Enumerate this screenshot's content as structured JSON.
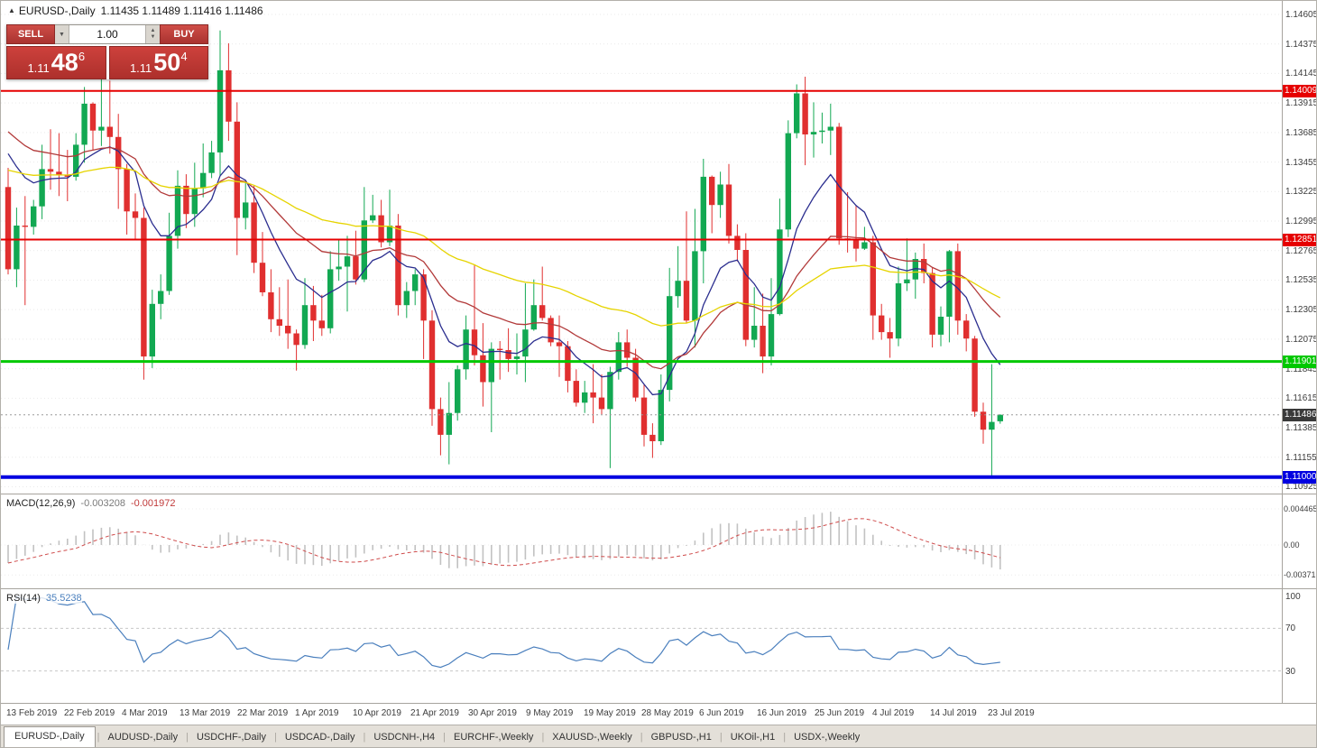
{
  "window": {
    "symbol_header": {
      "marker": "▲",
      "title": "EURUSD-,Daily",
      "ohlc": "1.11435 1.11489 1.11416 1.11486"
    },
    "trade_panel": {
      "sell_label": "SELL",
      "buy_label": "BUY",
      "volume": "1.00",
      "sell_price": {
        "prefix": "1.11",
        "big": "48",
        "sup": "6"
      },
      "buy_price": {
        "prefix": "1.11",
        "big": "50",
        "sup": "4"
      }
    },
    "tabs": [
      "EURUSD-,Daily",
      "AUDUSD-,Daily",
      "USDCHF-,Daily",
      "USDCAD-,Daily",
      "USDCNH-,H4",
      "EURCHF-,Weekly",
      "XAUUSD-,Weekly",
      "GBPUSD-,H1",
      "UKOil-,H1",
      "USDX-,Weekly"
    ],
    "active_tab": 0
  },
  "chart_data": {
    "type": "candlestick",
    "title": "EURUSD-,Daily",
    "price_axis": {
      "top_price": 1.14605,
      "step": 0.0023,
      "ticks": [
        "1.14605",
        "1.14375",
        "1.14145",
        "1.13915",
        "1.13685",
        "1.13455",
        "1.13225",
        "1.12995",
        "1.12765",
        "1.12535",
        "1.12305",
        "1.12075",
        "1.11845",
        "1.11615",
        "1.11385",
        "1.11155",
        "1.10925"
      ]
    },
    "x_axis_labels": [
      "13 Feb 2019",
      "22 Feb 2019",
      "4 Mar 2019",
      "13 Mar 2019",
      "22 Mar 2019",
      "1 Apr 2019",
      "10 Apr 2019",
      "21 Apr 2019",
      "30 Apr 2019",
      "9 May 2019",
      "19 May 2019",
      "28 May 2019",
      "6 Jun 2019",
      "16 Jun 2019",
      "25 Jun 2019",
      "4 Jul 2019",
      "14 Jul 2019",
      "23 Jul 2019"
    ],
    "hlines": [
      {
        "price": 1.14009,
        "label": "1.14009",
        "color": "#e60000",
        "width": 2
      },
      {
        "price": 1.12851,
        "label": "1.12851",
        "color": "#e60000",
        "width": 2
      },
      {
        "price": 1.11901,
        "label": "1.11901",
        "color": "#00c800",
        "width": 3
      },
      {
        "price": 1.11,
        "label": "1.11000",
        "color": "#0000e0",
        "width": 4
      }
    ],
    "current_price": {
      "value": 1.11486,
      "label": "1.11486"
    },
    "moving_averages": [
      {
        "name": "fast",
        "period": 10,
        "seed": 1.1372,
        "color": "#2b2e8f"
      },
      {
        "name": "medium",
        "period": 25,
        "seed": 1.1378,
        "color": "#b23a3a"
      },
      {
        "name": "slow",
        "period": 55,
        "seed": 1.1342,
        "color": "#e6d400"
      }
    ],
    "indicators": {
      "macd": {
        "label": "MACD(12,26,9)",
        "value_main": "-0.003208",
        "value_signal": "-0.001972",
        "fast": 12,
        "slow": 26,
        "signal": 9,
        "axis_ticks": [
          {
            "value": 0.004465,
            "label": "0.004465"
          },
          {
            "value": 0,
            "label": "0.00"
          },
          {
            "value": -0.003715,
            "label": "-0.003715"
          }
        ]
      },
      "rsi": {
        "label": "RSI(14)",
        "value": "35.5238",
        "period": 14,
        "levels": [
          70,
          30
        ],
        "axis_ticks": [
          {
            "value": 100,
            "label": "100"
          },
          {
            "value": 70,
            "label": "70"
          },
          {
            "value": 30,
            "label": "30"
          }
        ]
      }
    },
    "colors": {
      "bull": "#12a852",
      "bear": "#e02f2f",
      "grid": "#e9e9e9",
      "macd_hist": "#c2c2c2",
      "macd_signal": "#cf4b4b",
      "rsi": "#4a7fbd",
      "current_tag": "#3a3a3a"
    },
    "ohlc": [
      [
        1.1326,
        1.1341,
        1.1258,
        1.1262
      ],
      [
        1.1262,
        1.131,
        1.1248,
        1.1296
      ],
      [
        1.1296,
        1.1319,
        1.1234,
        1.1295
      ],
      [
        1.1295,
        1.1316,
        1.1289,
        1.1311
      ],
      [
        1.1311,
        1.1359,
        1.1301,
        1.134
      ],
      [
        1.134,
        1.1371,
        1.1324,
        1.1338
      ],
      [
        1.1338,
        1.1368,
        1.1319,
        1.1335
      ],
      [
        1.1335,
        1.1355,
        1.1315,
        1.1334
      ],
      [
        1.1334,
        1.1368,
        1.1331,
        1.1359
      ],
      [
        1.1359,
        1.1404,
        1.1345,
        1.1391
      ],
      [
        1.1391,
        1.1392,
        1.1355,
        1.137
      ],
      [
        1.137,
        1.142,
        1.1358,
        1.1373
      ],
      [
        1.1373,
        1.1409,
        1.1352,
        1.1365
      ],
      [
        1.1365,
        1.1383,
        1.1309,
        1.134
      ],
      [
        1.134,
        1.1344,
        1.1289,
        1.1307
      ],
      [
        1.1307,
        1.1321,
        1.1285,
        1.1302
      ],
      [
        1.1302,
        1.131,
        1.1176,
        1.1194
      ],
      [
        1.1194,
        1.1246,
        1.1185,
        1.1235
      ],
      [
        1.1235,
        1.1258,
        1.1223,
        1.1245
      ],
      [
        1.1245,
        1.1306,
        1.1242,
        1.1288
      ],
      [
        1.1288,
        1.1339,
        1.1278,
        1.1327
      ],
      [
        1.1327,
        1.1336,
        1.1294,
        1.1305
      ],
      [
        1.1305,
        1.1345,
        1.1295,
        1.1325
      ],
      [
        1.1325,
        1.136,
        1.1318,
        1.1337
      ],
      [
        1.1337,
        1.1362,
        1.1333,
        1.1353
      ],
      [
        1.1353,
        1.1448,
        1.1335,
        1.1417
      ],
      [
        1.1417,
        1.1438,
        1.1362,
        1.1377
      ],
      [
        1.1377,
        1.1392,
        1.1273,
        1.1302
      ],
      [
        1.1302,
        1.133,
        1.1293,
        1.1314
      ],
      [
        1.1314,
        1.1327,
        1.1259,
        1.1267
      ],
      [
        1.1267,
        1.1291,
        1.1241,
        1.1244
      ],
      [
        1.1244,
        1.1262,
        1.1213,
        1.1223
      ],
      [
        1.1223,
        1.1248,
        1.121,
        1.1218
      ],
      [
        1.1218,
        1.1254,
        1.12,
        1.1212
      ],
      [
        1.1212,
        1.1215,
        1.1183,
        1.1203
      ],
      [
        1.1203,
        1.1255,
        1.12,
        1.1234
      ],
      [
        1.1234,
        1.1249,
        1.1206,
        1.1222
      ],
      [
        1.1222,
        1.1242,
        1.121,
        1.1216
      ],
      [
        1.1216,
        1.1276,
        1.1212,
        1.1262
      ],
      [
        1.1262,
        1.1285,
        1.1253,
        1.1264
      ],
      [
        1.1264,
        1.1288,
        1.1229,
        1.1272
      ],
      [
        1.1272,
        1.1292,
        1.125,
        1.1254
      ],
      [
        1.1254,
        1.1326,
        1.1252,
        1.13
      ],
      [
        1.13,
        1.132,
        1.1298,
        1.1304
      ],
      [
        1.1304,
        1.1316,
        1.1279,
        1.1283
      ],
      [
        1.1283,
        1.1324,
        1.128,
        1.1296
      ],
      [
        1.1296,
        1.1305,
        1.1226,
        1.1234
      ],
      [
        1.1234,
        1.1252,
        1.1224,
        1.1245
      ],
      [
        1.1245,
        1.1262,
        1.1234,
        1.1258
      ],
      [
        1.1258,
        1.1262,
        1.1192,
        1.1222
      ],
      [
        1.1222,
        1.123,
        1.114,
        1.1153
      ],
      [
        1.1153,
        1.1162,
        1.1117,
        1.1133
      ],
      [
        1.1133,
        1.1174,
        1.111,
        1.115
      ],
      [
        1.115,
        1.1187,
        1.1144,
        1.1184
      ],
      [
        1.1184,
        1.1226,
        1.1176,
        1.1215
      ],
      [
        1.1215,
        1.1265,
        1.1187,
        1.1195
      ],
      [
        1.1195,
        1.122,
        1.1155,
        1.1174
      ],
      [
        1.1174,
        1.1205,
        1.1135,
        1.12
      ],
      [
        1.12,
        1.1206,
        1.1176,
        1.1199
      ],
      [
        1.1199,
        1.1216,
        1.1182,
        1.1192
      ],
      [
        1.1192,
        1.1212,
        1.118,
        1.1194
      ],
      [
        1.1194,
        1.1251,
        1.1174,
        1.1215
      ],
      [
        1.1215,
        1.1254,
        1.1214,
        1.1234
      ],
      [
        1.1234,
        1.1264,
        1.1222,
        1.1224
      ],
      [
        1.1224,
        1.1226,
        1.1202,
        1.1205
      ],
      [
        1.1205,
        1.1226,
        1.1178,
        1.1202
      ],
      [
        1.1202,
        1.1206,
        1.1166,
        1.1175
      ],
      [
        1.1175,
        1.1184,
        1.1155,
        1.1158
      ],
      [
        1.1158,
        1.1175,
        1.115,
        1.1166
      ],
      [
        1.1166,
        1.1188,
        1.1142,
        1.1162
      ],
      [
        1.1162,
        1.118,
        1.1149,
        1.1153
      ],
      [
        1.1153,
        1.1186,
        1.1107,
        1.1182
      ],
      [
        1.1182,
        1.1213,
        1.1176,
        1.1205
      ],
      [
        1.1205,
        1.1215,
        1.1186,
        1.1193
      ],
      [
        1.1193,
        1.12,
        1.1159,
        1.1162
      ],
      [
        1.1162,
        1.1172,
        1.1124,
        1.1133
      ],
      [
        1.1133,
        1.1142,
        1.1115,
        1.1128
      ],
      [
        1.1128,
        1.118,
        1.1125,
        1.1168
      ],
      [
        1.1168,
        1.1263,
        1.1159,
        1.1241
      ],
      [
        1.1241,
        1.128,
        1.1232,
        1.1253
      ],
      [
        1.1253,
        1.1307,
        1.122,
        1.1222
      ],
      [
        1.1222,
        1.1309,
        1.1201,
        1.1276
      ],
      [
        1.1276,
        1.1348,
        1.1251,
        1.1334
      ],
      [
        1.1334,
        1.1335,
        1.129,
        1.1312
      ],
      [
        1.1312,
        1.1338,
        1.1302,
        1.1328
      ],
      [
        1.1328,
        1.1344,
        1.1282,
        1.1288
      ],
      [
        1.1288,
        1.1297,
        1.1268,
        1.1277
      ],
      [
        1.1277,
        1.129,
        1.1202,
        1.1207
      ],
      [
        1.1207,
        1.1248,
        1.1201,
        1.1218
      ],
      [
        1.1218,
        1.1243,
        1.1181,
        1.1194
      ],
      [
        1.1194,
        1.1255,
        1.1187,
        1.1227
      ],
      [
        1.1227,
        1.1317,
        1.1226,
        1.1293
      ],
      [
        1.1293,
        1.1378,
        1.1287,
        1.1368
      ],
      [
        1.1368,
        1.1406,
        1.1364,
        1.1399
      ],
      [
        1.1399,
        1.1412,
        1.1343,
        1.1367
      ],
      [
        1.1367,
        1.1392,
        1.1349,
        1.1369
      ],
      [
        1.1369,
        1.1384,
        1.136,
        1.137
      ],
      [
        1.137,
        1.1391,
        1.1351,
        1.1373
      ],
      [
        1.1373,
        1.1376,
        1.1281,
        1.1286
      ],
      [
        1.1286,
        1.1322,
        1.1275,
        1.1285
      ],
      [
        1.1285,
        1.1312,
        1.1268,
        1.1278
      ],
      [
        1.1278,
        1.1295,
        1.1277,
        1.1283
      ],
      [
        1.1283,
        1.1288,
        1.1207,
        1.1226
      ],
      [
        1.1226,
        1.1235,
        1.1207,
        1.1213
      ],
      [
        1.1213,
        1.1224,
        1.1193,
        1.1208
      ],
      [
        1.1208,
        1.1264,
        1.1202,
        1.1251
      ],
      [
        1.1251,
        1.1286,
        1.1245,
        1.1254
      ],
      [
        1.1254,
        1.1275,
        1.1239,
        1.127
      ],
      [
        1.127,
        1.1282,
        1.1251,
        1.1259
      ],
      [
        1.1259,
        1.1263,
        1.1201,
        1.1211
      ],
      [
        1.1211,
        1.1233,
        1.1202,
        1.1225
      ],
      [
        1.1225,
        1.1277,
        1.1205,
        1.1276
      ],
      [
        1.1276,
        1.1282,
        1.1211,
        1.1222
      ],
      [
        1.1222,
        1.1227,
        1.1198,
        1.1208
      ],
      [
        1.1208,
        1.121,
        1.1147,
        1.1151
      ],
      [
        1.1151,
        1.1158,
        1.1126,
        1.1137
      ],
      [
        1.1137,
        1.1188,
        1.1101,
        1.1143
      ],
      [
        1.11435,
        1.11489,
        1.11416,
        1.11486
      ]
    ]
  }
}
